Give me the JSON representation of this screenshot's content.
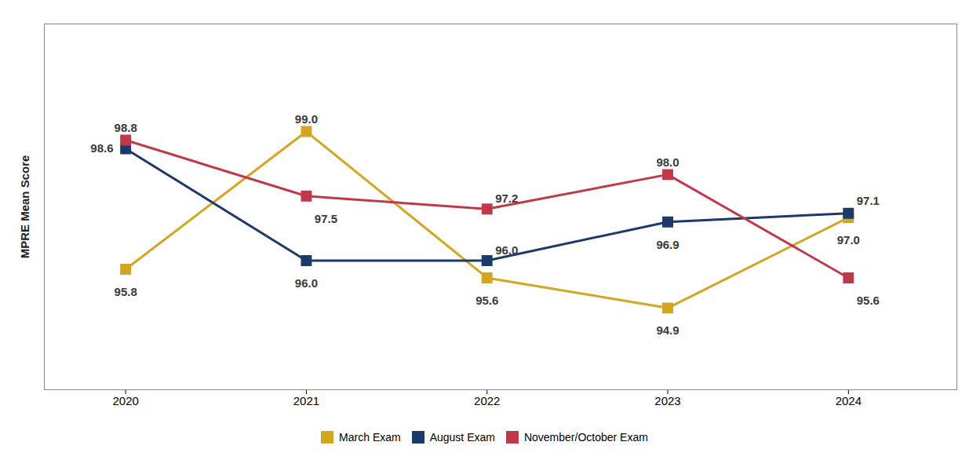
{
  "chart_data": {
    "type": "line",
    "x": [
      2020,
      2021,
      2022,
      2023,
      2024
    ],
    "xlim": [
      2019.55,
      2024.6
    ],
    "xticks": [
      2020,
      2021,
      2022,
      2023,
      2024
    ],
    "ylabel": "MPRE Mean Score",
    "ylim": [
      93.0,
      101.5
    ],
    "yticks": [],
    "tick_labels": "x",
    "data_labels": true,
    "legend": "bottom",
    "marker": "square",
    "series": [
      {
        "name": "March Exam",
        "color": "#D4A520",
        "values": [
          95.8,
          99.0,
          95.6,
          94.9,
          97.0
        ],
        "value_labels": [
          "95.8",
          "99.0",
          "95.6",
          "94.9",
          "97.0"
        ]
      },
      {
        "name": "August Exam",
        "color": "#1B3A6B",
        "values": [
          98.6,
          96.0,
          96.0,
          96.9,
          97.1
        ],
        "value_labels": [
          "98.6",
          "96.0",
          "96.0",
          "96.9",
          "97.1"
        ]
      },
      {
        "name": "November/October Exam",
        "color": "#C0394B",
        "values": [
          98.8,
          97.5,
          97.2,
          98.0,
          95.6
        ],
        "value_labels": [
          "98.8",
          "97.5",
          "97.2",
          "98.0",
          "95.6"
        ]
      }
    ]
  }
}
